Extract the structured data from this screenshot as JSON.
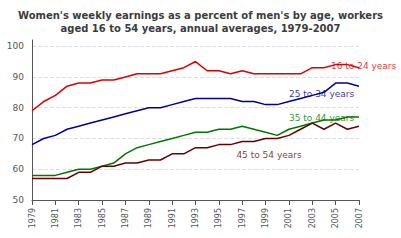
{
  "chart_data": {
    "type": "line",
    "title": "Women's weekly earnings as a percent of men's by age, workers\naged 16 to 54 years, annual averages, 1979-2007",
    "x": [
      1979,
      1980,
      1981,
      1982,
      1983,
      1984,
      1985,
      1986,
      1987,
      1988,
      1989,
      1990,
      1991,
      1992,
      1993,
      1994,
      1995,
      1996,
      1997,
      1998,
      1999,
      2000,
      2001,
      2002,
      2003,
      2004,
      2005,
      2006,
      2007
    ],
    "series": [
      {
        "color": "#dd0000",
        "values": [
          79,
          82,
          84,
          87,
          88,
          88,
          89,
          89,
          90,
          91,
          91,
          91,
          92,
          93,
          95,
          92,
          92,
          91,
          92,
          91,
          91,
          91,
          91,
          91,
          93,
          93,
          94,
          94,
          93
        ]
      },
      {
        "color": "#000099",
        "values": [
          68,
          70,
          71,
          73,
          74,
          75,
          76,
          77,
          78,
          79,
          80,
          80,
          81,
          82,
          83,
          83,
          83,
          83,
          82,
          82,
          81,
          81,
          82,
          83,
          84,
          85,
          88,
          88,
          87
        ]
      },
      {
        "color": "#007700",
        "values": [
          58,
          58,
          58,
          59,
          60,
          60,
          61,
          62,
          65,
          67,
          68,
          69,
          70,
          71,
          72,
          72,
          73,
          73,
          74,
          73,
          72,
          71,
          73,
          74,
          75,
          76,
          76,
          77,
          77
        ]
      },
      {
        "color": "#660000",
        "values": [
          57,
          57,
          57,
          57,
          59,
          59,
          61,
          61,
          62,
          62,
          63,
          63,
          65,
          65,
          67,
          67,
          68,
          68,
          69,
          69,
          70,
          70,
          71,
          73,
          75,
          73,
          75,
          73,
          74
        ]
      }
    ],
    "annotations": [
      {
        "text": "16 to 24 years",
        "x": 2004.6,
        "y": 93.5,
        "color": "#dd0000"
      },
      {
        "text": "25 to 34 years",
        "x": 2001.0,
        "y": 84.5,
        "color": "#000099"
      },
      {
        "text": "35 to 44 years",
        "x": 2001.0,
        "y": 76.5,
        "color": "#007700"
      },
      {
        "text": "45 to 54 years",
        "x": 1996.5,
        "y": 64.5,
        "color": "#660000"
      }
    ],
    "xlim": [
      1979,
      2007
    ],
    "xticks": [
      1979,
      1981,
      1983,
      1985,
      1987,
      1989,
      1991,
      1993,
      1995,
      1997,
      1999,
      2001,
      2003,
      2005,
      2007
    ],
    "ylim": [
      50,
      102
    ],
    "yticks": [
      50,
      60,
      70,
      80,
      90,
      100
    ],
    "grid": true
  }
}
